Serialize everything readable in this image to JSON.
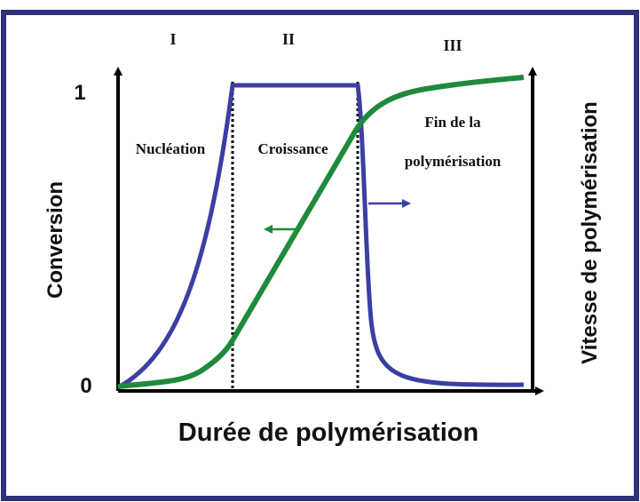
{
  "phases": {
    "phase_1": "I",
    "phase_2": "II",
    "phase_3": "III"
  },
  "y_axis": {
    "label": "Conversion",
    "tick_low": "0",
    "tick_high": "1"
  },
  "y2_axis": {
    "label": "Vitesse de polymérisation"
  },
  "x_axis": {
    "label": "Durée de polymérisation"
  },
  "annotations": {
    "nucleation": "Nucléation",
    "growth": "Croissance",
    "end_line1": "Fin de la",
    "end_line2": "polymérisation"
  }
}
